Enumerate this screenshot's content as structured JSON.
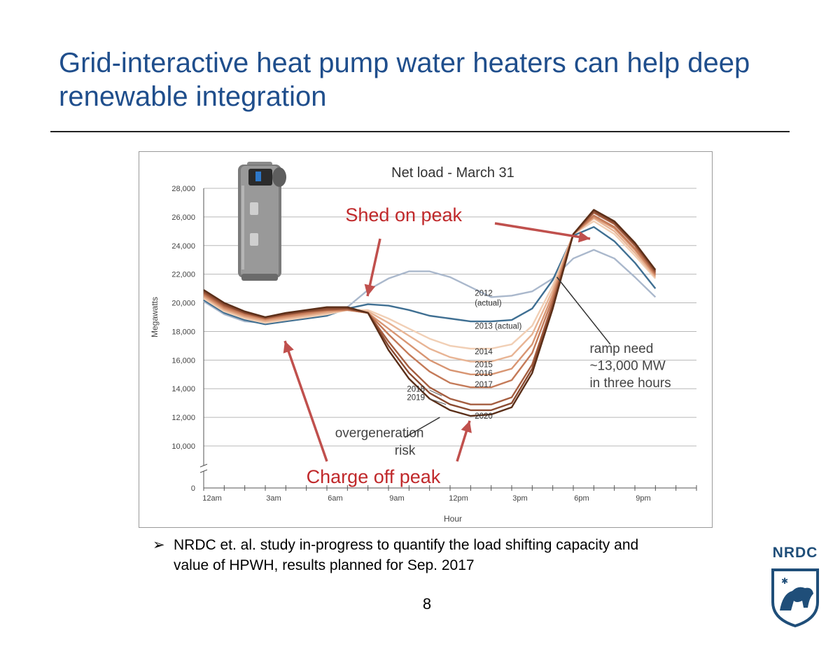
{
  "slide": {
    "title": "Grid-interactive heat pump water heaters can help deep renewable integration",
    "bullet_symbol": "➢",
    "bullet": "NRDC et. al. study in-progress to quantify the load shifting capacity and value of HPWH, results planned for Sep. 2017",
    "page_number": "8"
  },
  "logo": {
    "text": "NRDC",
    "icon": "bear-shield-icon",
    "color": "#1f4e79"
  },
  "product_image": {
    "icon": "water-heater-icon"
  },
  "colors": {
    "title": "#1f4e8c",
    "callout": "#c0292b",
    "arrow": "#c0504d"
  },
  "chart_data": {
    "type": "line",
    "title": "Net load - March 31",
    "xlabel": "Hour",
    "ylabel": "Megawatts",
    "x": [
      0,
      1,
      2,
      3,
      4,
      5,
      6,
      7,
      8,
      9,
      10,
      11,
      12,
      13,
      14,
      15,
      16,
      17,
      18,
      19,
      20,
      21,
      22,
      23
    ],
    "x_ticks": [
      {
        "x": 0,
        "label": "12am"
      },
      {
        "x": 3,
        "label": "3am"
      },
      {
        "x": 6,
        "label": "6am"
      },
      {
        "x": 9,
        "label": "9am"
      },
      {
        "x": 12,
        "label": "12pm"
      },
      {
        "x": 15,
        "label": "3pm"
      },
      {
        "x": 18,
        "label": "6pm"
      },
      {
        "x": 21,
        "label": "9pm"
      }
    ],
    "xlim": [
      0,
      24
    ],
    "y_ticks": [
      {
        "v": 0,
        "label": "0"
      },
      {
        "v": 10000,
        "label": "10,000"
      },
      {
        "v": 12000,
        "label": "12,000"
      },
      {
        "v": 14000,
        "label": "14,000"
      },
      {
        "v": 16000,
        "label": "16,000"
      },
      {
        "v": 18000,
        "label": "18,000"
      },
      {
        "v": 20000,
        "label": "20,000"
      },
      {
        "v": 22000,
        "label": "22,000"
      },
      {
        "v": 24000,
        "label": "24,000"
      },
      {
        "v": 26000,
        "label": "26,000"
      },
      {
        "v": 28000,
        "label": "28,000"
      }
    ],
    "ylim": [
      10000,
      28000
    ],
    "axis_break": true,
    "grid": true,
    "series": [
      {
        "name": "2012 (actual)",
        "color": "#aab8cc",
        "values": [
          20100,
          19200,
          18700,
          18600,
          18800,
          19000,
          19300,
          19700,
          20900,
          21700,
          22200,
          22200,
          21800,
          21100,
          20400,
          20500,
          20800,
          21700,
          23100,
          23700,
          23100,
          21800,
          20400,
          null
        ]
      },
      {
        "name": "2013 (actual)",
        "color": "#3f6f92",
        "values": [
          20200,
          19300,
          18800,
          18500,
          18700,
          18900,
          19100,
          19600,
          19900,
          19800,
          19500,
          19100,
          18900,
          18700,
          18700,
          18800,
          19600,
          21600,
          24700,
          25300,
          24300,
          22800,
          21000,
          null
        ]
      },
      {
        "name": "2014",
        "color": "#f1cfb5",
        "values": [
          20300,
          19400,
          18900,
          18600,
          18800,
          19000,
          19200,
          19500,
          19500,
          18900,
          18200,
          17500,
          17000,
          16800,
          16800,
          17100,
          18400,
          21200,
          24800,
          25700,
          24800,
          23300,
          21700,
          null
        ]
      },
      {
        "name": "2015",
        "color": "#e8b494",
        "values": [
          20400,
          19500,
          19000,
          18700,
          18900,
          19100,
          19300,
          19500,
          19400,
          18600,
          17700,
          16800,
          16200,
          15900,
          15900,
          16300,
          17800,
          20900,
          24800,
          25900,
          25000,
          23500,
          21800,
          null
        ]
      },
      {
        "name": "2016",
        "color": "#d89572",
        "values": [
          20500,
          19600,
          19100,
          18800,
          19000,
          19200,
          19400,
          19500,
          19300,
          18200,
          17100,
          16000,
          15300,
          15000,
          15000,
          15400,
          17100,
          20600,
          24800,
          26000,
          25200,
          23700,
          21900,
          null
        ]
      },
      {
        "name": "2017",
        "color": "#c47a58",
        "values": [
          20600,
          19700,
          19200,
          18900,
          19100,
          19300,
          19500,
          19500,
          19300,
          17800,
          16400,
          15200,
          14400,
          14100,
          14100,
          14600,
          16500,
          20300,
          24800,
          26100,
          25300,
          23800,
          22000,
          null
        ]
      },
      {
        "name": "2018",
        "color": "#a55e40",
        "values": [
          20700,
          19800,
          19300,
          18900,
          19200,
          19400,
          19500,
          19600,
          19300,
          17300,
          15500,
          14100,
          13300,
          12900,
          12900,
          13400,
          15700,
          20000,
          24800,
          26300,
          25500,
          24000,
          22100,
          null
        ]
      },
      {
        "name": "2019",
        "color": "#8a4a30",
        "values": [
          20800,
          19900,
          19300,
          19000,
          19200,
          19400,
          19600,
          19600,
          19300,
          17000,
          15100,
          13700,
          12900,
          12500,
          12500,
          13000,
          15400,
          19800,
          24800,
          26400,
          25600,
          24100,
          22200,
          null
        ]
      },
      {
        "name": "2020",
        "color": "#5a2e18",
        "values": [
          20900,
          20000,
          19400,
          19000,
          19300,
          19500,
          19700,
          19700,
          19300,
          16700,
          14700,
          13300,
          12500,
          12100,
          12200,
          12700,
          15100,
          19600,
          24800,
          26500,
          25700,
          24200,
          22300,
          null
        ]
      }
    ],
    "series_labels": [
      {
        "text": "2012",
        "x": 13.2,
        "y": 20500
      },
      {
        "text": "(actual)",
        "x": 13.2,
        "y": 19800
      },
      {
        "text": "2013 (actual)",
        "x": 13.2,
        "y": 18200
      },
      {
        "text": "2014",
        "x": 13.2,
        "y": 16400
      },
      {
        "text": "2015",
        "x": 13.2,
        "y": 15500
      },
      {
        "text": "2016",
        "x": 13.2,
        "y": 14900
      },
      {
        "text": "2017",
        "x": 13.2,
        "y": 14100
      },
      {
        "text": "2018",
        "x": 9.9,
        "y": 13800
      },
      {
        "text": "2019",
        "x": 9.9,
        "y": 13200
      },
      {
        "text": "2020",
        "x": 13.2,
        "y": 11900
      }
    ],
    "annotations": [
      {
        "text": "ramp need",
        "x": 18.8,
        "y": 16500
      },
      {
        "text": "~13,000 MW",
        "x": 18.8,
        "y": 15300
      },
      {
        "text": "in three hours",
        "x": 18.8,
        "y": 14100
      },
      {
        "text": "overgeneration",
        "x": 6.4,
        "y": 10600
      },
      {
        "text": "risk",
        "x": 9.3,
        "y": 9400
      }
    ],
    "callouts": [
      {
        "text": "Shed on peak",
        "x": 6.9,
        "y": 25700
      },
      {
        "text": "Charge off peak",
        "x": 5.0,
        "y": 7400
      }
    ]
  }
}
